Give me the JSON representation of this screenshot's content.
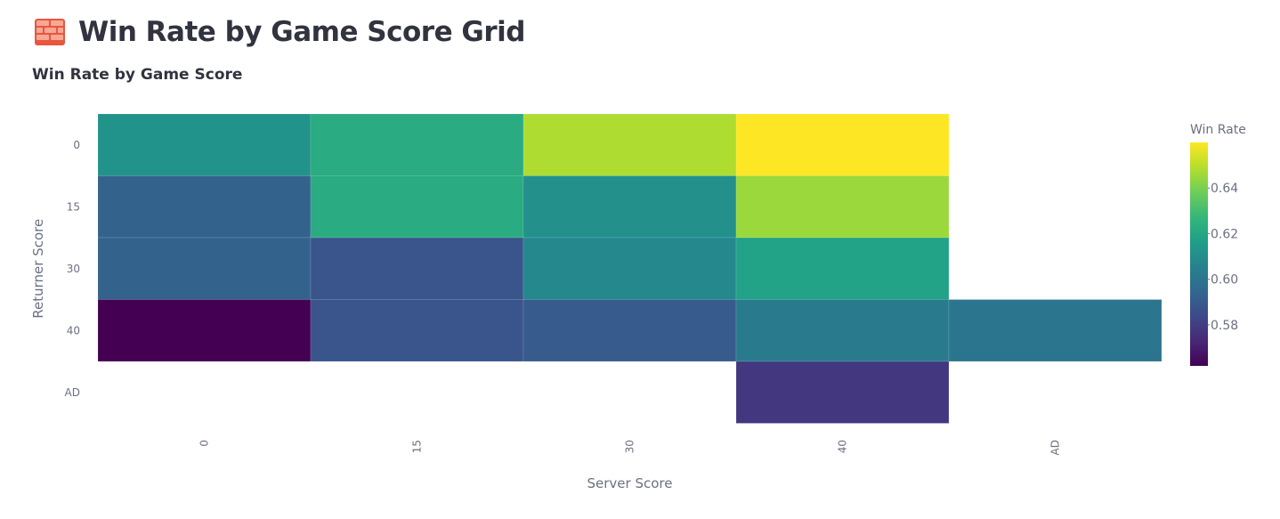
{
  "page": {
    "title": "Win Rate by Game Score Grid",
    "icon": "brick-icon"
  },
  "chart_data": {
    "type": "heatmap",
    "title": "Win Rate by Game Score",
    "xlabel": "Server Score",
    "ylabel": "Returner Score",
    "x_categories": [
      "0",
      "15",
      "30",
      "40",
      "AD"
    ],
    "y_categories": [
      "0",
      "15",
      "30",
      "40",
      "AD"
    ],
    "values": [
      [
        0.612,
        0.622,
        0.648,
        0.66,
        null
      ],
      [
        0.593,
        0.622,
        0.611,
        0.645,
        null
      ],
      [
        0.593,
        0.588,
        0.608,
        0.618,
        null
      ],
      [
        0.562,
        0.588,
        0.59,
        0.602,
        0.6
      ],
      [
        null,
        null,
        null,
        0.578,
        null
      ]
    ],
    "colorscale": "Viridis",
    "colorbar": {
      "title": "Win Rate",
      "min": 0.562,
      "max": 0.66,
      "ticks": [
        "0.58",
        "0.6",
        "0.62",
        "0.64"
      ],
      "tick_labels": [
        "0.58",
        "0.60",
        "0.62",
        "0.64"
      ]
    },
    "x_tick_rotation": "vertical",
    "grid": false
  }
}
